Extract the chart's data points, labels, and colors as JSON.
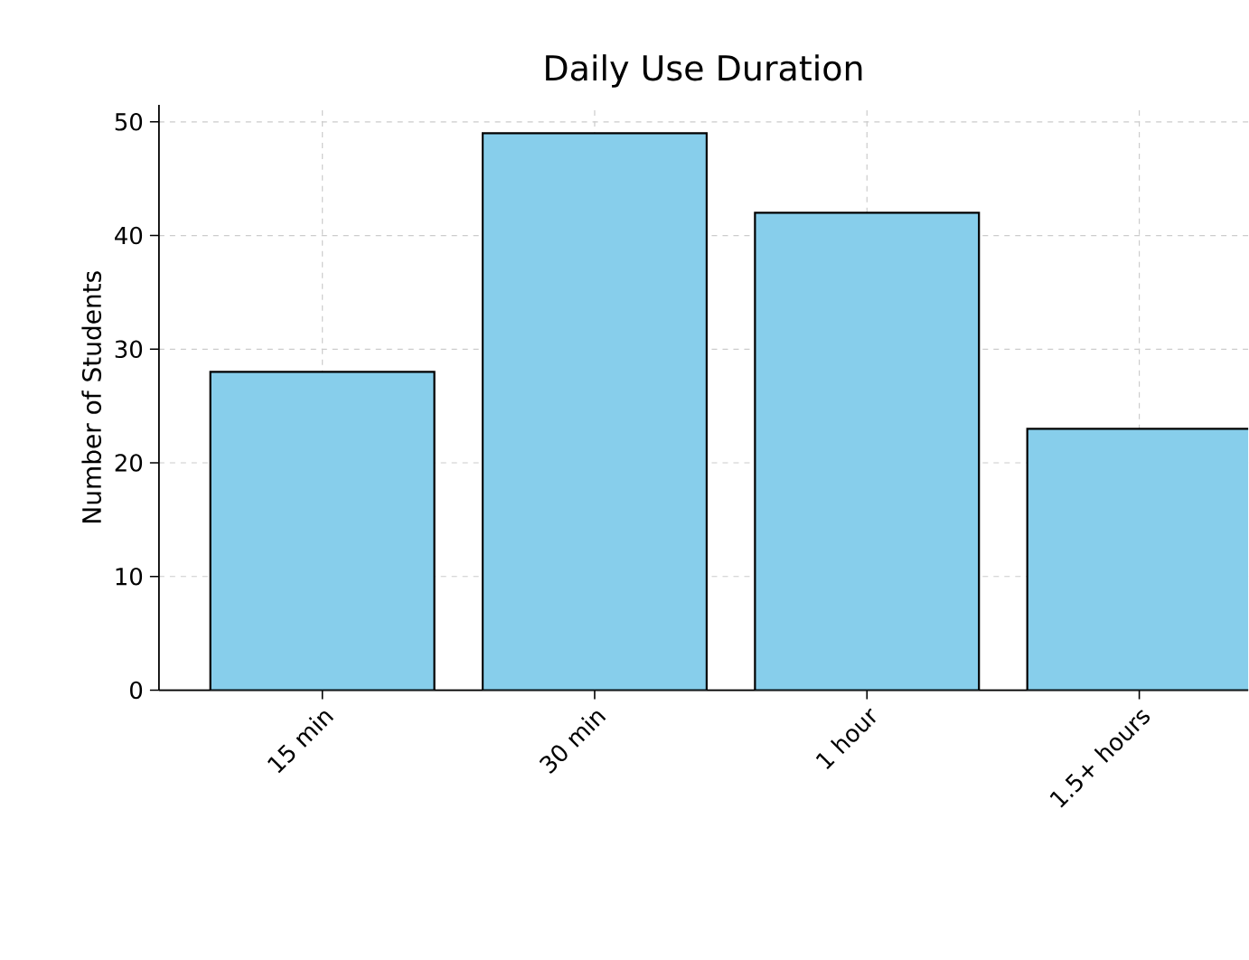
{
  "chart_data": {
    "type": "bar",
    "title": "Daily Use Duration",
    "ylabel": "Number of Students",
    "categories": [
      "15 min",
      "30 min",
      "1 hour",
      "1.5+ hours"
    ],
    "values": [
      28,
      49,
      42,
      23
    ],
    "color": "#87ceeb",
    "ylim": [
      0,
      51.5
    ],
    "yticks": [
      0,
      10,
      20,
      30,
      40,
      50
    ],
    "grid": true
  }
}
